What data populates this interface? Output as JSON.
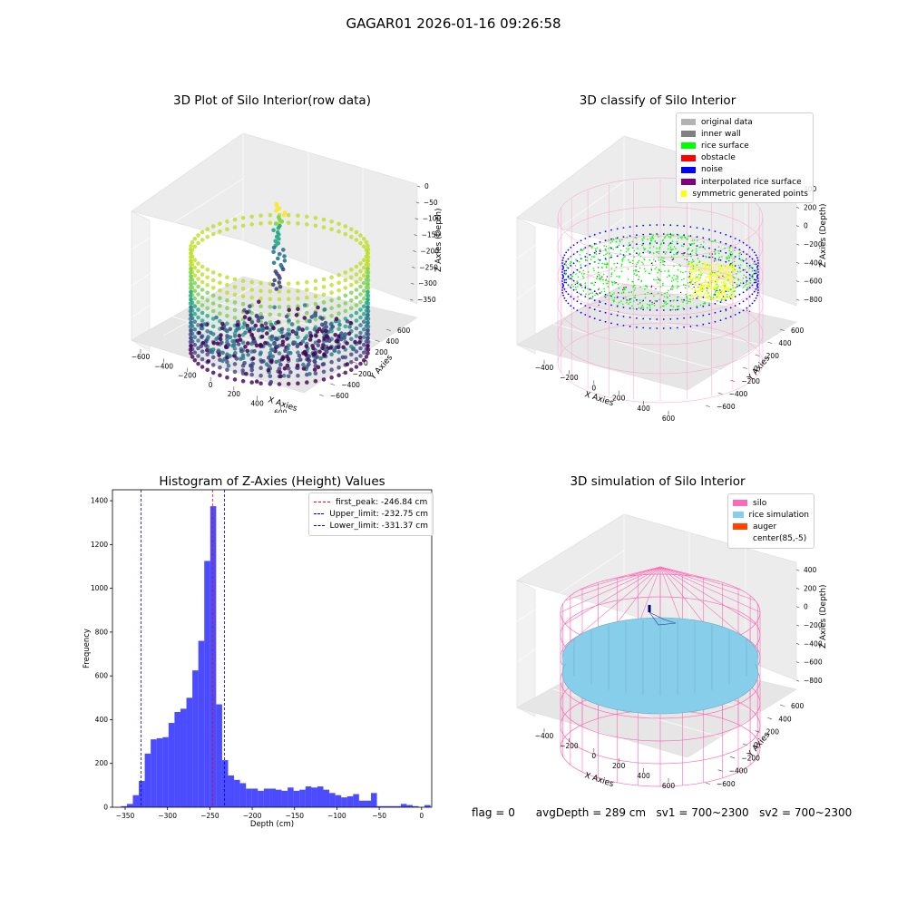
{
  "suptitle": "GAGAR01 2026-01-16 09:26:58",
  "panel1": {
    "title": "3D Plot of Silo Interior(row data)",
    "xlabel": "X Axies",
    "ylabel": "Y Axies",
    "zlabel": "Z Axies (Depth)",
    "xticks": [
      "−600",
      "−400",
      "−200",
      "0",
      "200",
      "400",
      "600",
      "800"
    ],
    "yticks": [
      "600",
      "400",
      "200",
      "0",
      "−200",
      "−400",
      "−600"
    ],
    "zticks": [
      "0",
      "−50",
      "−100",
      "−150",
      "−200",
      "−250",
      "−300",
      "−350"
    ]
  },
  "panel2": {
    "title": "3D classify of Silo Interior",
    "xlabel": "X Axies",
    "ylabel": "Y Axies",
    "zlabel": "Z Axies (Depth)",
    "xticks": [
      "−400",
      "−200",
      "0",
      "200",
      "400",
      "600"
    ],
    "yticks": [
      "600",
      "400",
      "200",
      "0",
      "−200",
      "−400",
      "−600"
    ],
    "zticks": [
      "400",
      "200",
      "0",
      "−200",
      "−400",
      "−600",
      "−800"
    ],
    "legend": [
      {
        "label": "original data",
        "color": "#b3b3b3"
      },
      {
        "label": "inner wall",
        "color": "#808080"
      },
      {
        "label": "rice surface",
        "color": "#00ff00"
      },
      {
        "label": "obstacle",
        "color": "#ff0000"
      },
      {
        "label": "noise",
        "color": "#0000ff"
      },
      {
        "label": "interpolated rice surface",
        "color": "#800080"
      },
      {
        "label": "symmetric generated points",
        "color": "#ffff00"
      }
    ]
  },
  "panel3": {
    "title": "Histogram of Z-Axies (Height) Values",
    "xlabel": "Depth (cm)",
    "ylabel": "Frequency",
    "legend": [
      {
        "label": "first_peak: -246.84 cm",
        "color": "#ff0000",
        "value": -246.84
      },
      {
        "label": "Upper_limit: -232.75 cm",
        "color": "#0000ff",
        "value": -232.75
      },
      {
        "label": "Lower_limit: -331.37 cm",
        "color": "#0000ff",
        "value": -331.37
      }
    ]
  },
  "panel4": {
    "title": "3D simulation of Silo Interior",
    "xlabel": "X Axies",
    "ylabel": "Y Axies",
    "zlabel": "Z Axies (Depth)",
    "xticks": [
      "−400",
      "−200",
      "0",
      "200",
      "400",
      "600"
    ],
    "yticks": [
      "600",
      "400",
      "200",
      "0",
      "−200",
      "−400",
      "−600"
    ],
    "zticks": [
      "400",
      "200",
      "0",
      "−200",
      "−400",
      "−600",
      "−800"
    ],
    "legend": [
      {
        "label": "silo",
        "color": "#ff69b4"
      },
      {
        "label": "rice simulation",
        "color": "#87ceeb"
      },
      {
        "label": "auger",
        "color": "#ff4500"
      },
      {
        "label": "center(85,-5)",
        "color": "#ffffff"
      }
    ]
  },
  "status": {
    "flag": "flag = 0",
    "avg_depth": "avgDepth = 289 cm",
    "sv1": "sv1 = 700~2300",
    "sv2": "sv2 = 700~2300"
  },
  "chart_data": [
    {
      "type": "scatter",
      "title": "3D Plot of Silo Interior(row data)",
      "xlabel": "X Axies",
      "ylabel": "Y Axies",
      "zlabel": "Z Axies (Depth)",
      "xlim": [
        -650,
        850
      ],
      "ylim": [
        -650,
        650
      ],
      "zlim": [
        -370,
        10
      ]
    },
    {
      "type": "scatter",
      "title": "3D classify of Silo Interior",
      "xlabel": "X Axies",
      "ylabel": "Y Axies",
      "zlabel": "Z Axies (Depth)",
      "series": [
        {
          "name": "original data"
        },
        {
          "name": "inner wall"
        },
        {
          "name": "rice surface"
        },
        {
          "name": "obstacle"
        },
        {
          "name": "noise"
        },
        {
          "name": "interpolated rice surface"
        },
        {
          "name": "symmetric generated points"
        }
      ],
      "zlim": [
        -850,
        450
      ]
    },
    {
      "type": "bar",
      "title": "Histogram of Z-Axies (Height) Values",
      "xlabel": "Depth (cm)",
      "ylabel": "Frequency",
      "xlim": [
        -365,
        12
      ],
      "ylim": [
        0,
        1450
      ],
      "xticks": [
        -350,
        -300,
        -250,
        -200,
        -150,
        -100,
        -50,
        0
      ],
      "yticks": [
        0,
        200,
        400,
        600,
        800,
        1000,
        1200,
        1400
      ],
      "bin_width": 7.03,
      "bin_start": -355.0,
      "values": [
        5,
        15,
        55,
        120,
        245,
        310,
        315,
        320,
        385,
        435,
        450,
        500,
        625,
        760,
        1125,
        1375,
        470,
        215,
        145,
        125,
        110,
        85,
        85,
        75,
        85,
        85,
        80,
        75,
        90,
        75,
        80,
        95,
        90,
        95,
        80,
        65,
        55,
        45,
        50,
        60,
        30,
        30,
        65,
        5,
        5,
        5,
        5,
        15,
        10,
        5,
        0,
        10
      ],
      "vlines": [
        {
          "name": "first_peak: -246.84 cm",
          "x": -246.84
        },
        {
          "name": "Upper_limit: -232.75 cm",
          "x": -232.75
        },
        {
          "name": "Lower_limit: -331.37 cm",
          "x": -331.37
        }
      ]
    },
    {
      "type": "scatter",
      "title": "3D simulation of Silo Interior",
      "xlabel": "X Axies",
      "ylabel": "Y Axies",
      "zlabel": "Z Axies (Depth)",
      "series": [
        {
          "name": "silo"
        },
        {
          "name": "rice simulation"
        },
        {
          "name": "auger"
        },
        {
          "name": "center(85,-5)"
        }
      ],
      "zlim": [
        -850,
        450
      ]
    }
  ]
}
